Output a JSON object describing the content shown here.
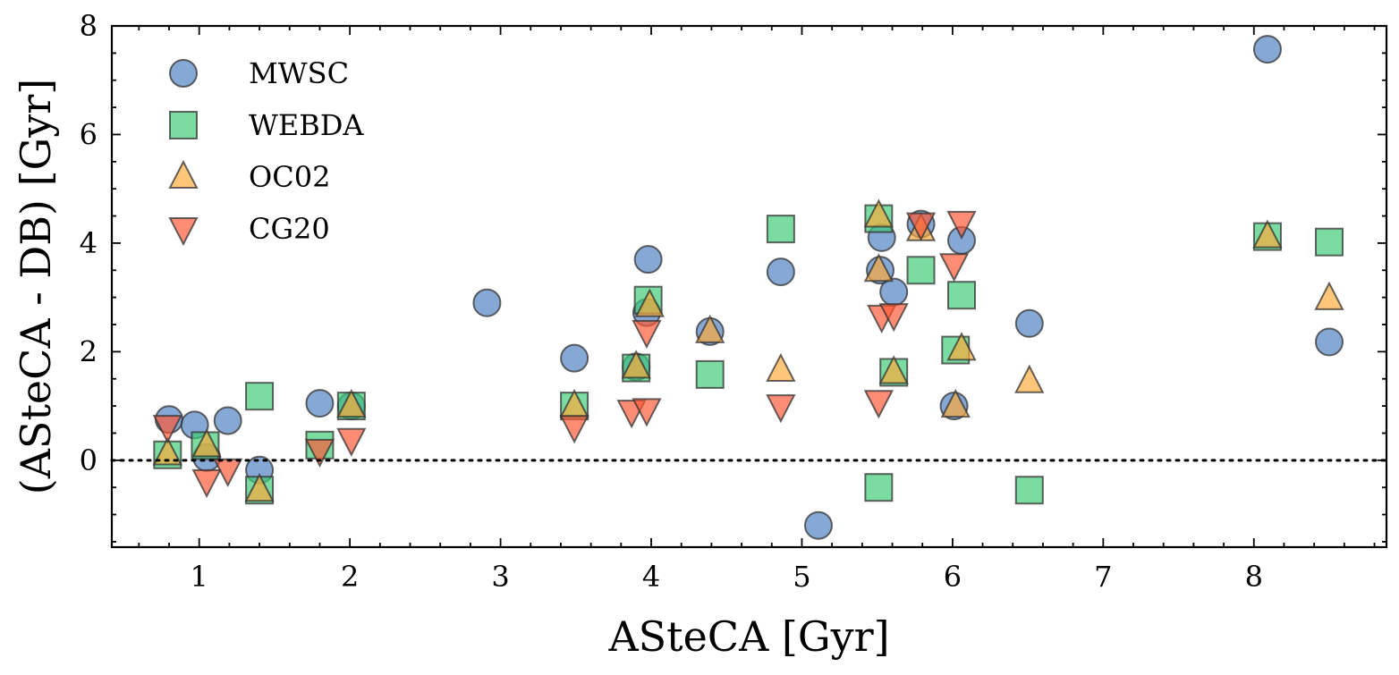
{
  "chart_data": {
    "type": "scatter",
    "xlabel": "ASteCA [Gyr]",
    "ylabel": "(ASteCA - DB) [Gyr]",
    "xlim": [
      0.42,
      8.88
    ],
    "ylim": [
      -1.6,
      8.0
    ],
    "x_ticks": [
      1,
      2,
      3,
      4,
      5,
      6,
      7,
      8
    ],
    "y_ticks": [
      0,
      2,
      4,
      6,
      8
    ],
    "x_tick_labels": [
      "1",
      "2",
      "3",
      "4",
      "5",
      "6",
      "7",
      "8"
    ],
    "y_tick_labels": [
      "0",
      "2",
      "4",
      "6",
      "8"
    ],
    "reference_line": {
      "y": 0,
      "style": "dotted",
      "color": "#000000"
    },
    "legend_position": "top-left",
    "grid": false,
    "series": [
      {
        "name": "MWSC",
        "marker": "circle",
        "color": "#4C7FBF",
        "points": [
          [
            0.8,
            0.75
          ],
          [
            0.97,
            0.65
          ],
          [
            1.05,
            0.05
          ],
          [
            1.19,
            0.73
          ],
          [
            1.4,
            -0.18
          ],
          [
            1.8,
            1.05
          ],
          [
            2.01,
            1.0
          ],
          [
            2.91,
            2.9
          ],
          [
            3.49,
            1.88
          ],
          [
            3.9,
            1.72
          ],
          [
            3.97,
            2.72
          ],
          [
            3.98,
            3.7
          ],
          [
            4.39,
            2.37
          ],
          [
            4.86,
            3.47
          ],
          [
            5.11,
            -1.2
          ],
          [
            5.52,
            3.5
          ],
          [
            5.53,
            4.1
          ],
          [
            5.61,
            3.1
          ],
          [
            5.79,
            4.35
          ],
          [
            6.01,
            1.0
          ],
          [
            6.06,
            4.05
          ],
          [
            6.51,
            2.52
          ],
          [
            8.09,
            7.57
          ],
          [
            8.5,
            2.18
          ]
        ]
      },
      {
        "name": "WEBDA",
        "marker": "square",
        "color": "#3DCC74",
        "points": [
          [
            0.79,
            0.1
          ],
          [
            1.04,
            0.27
          ],
          [
            1.4,
            1.18
          ],
          [
            1.4,
            -0.55
          ],
          [
            1.8,
            0.28
          ],
          [
            2.01,
            1.0
          ],
          [
            3.49,
            1.0
          ],
          [
            3.9,
            1.7
          ],
          [
            3.98,
            2.95
          ],
          [
            4.39,
            1.58
          ],
          [
            4.86,
            4.26
          ],
          [
            5.51,
            4.45
          ],
          [
            5.51,
            -0.5
          ],
          [
            5.61,
            1.62
          ],
          [
            5.79,
            3.5
          ],
          [
            6.02,
            2.03
          ],
          [
            6.06,
            3.04
          ],
          [
            6.51,
            -0.55
          ],
          [
            8.09,
            4.12
          ],
          [
            8.5,
            4.02
          ]
        ]
      },
      {
        "name": "OC02",
        "marker": "triangle-up",
        "color": "#FFA938",
        "points": [
          [
            0.79,
            0.12
          ],
          [
            1.05,
            0.27
          ],
          [
            1.4,
            -0.55
          ],
          [
            2.01,
            1.0
          ],
          [
            3.49,
            1.0
          ],
          [
            3.9,
            1.72
          ],
          [
            3.99,
            2.85
          ],
          [
            4.39,
            2.37
          ],
          [
            4.86,
            1.66
          ],
          [
            5.51,
            4.5
          ],
          [
            5.51,
            3.5
          ],
          [
            5.61,
            1.62
          ],
          [
            5.79,
            4.25
          ],
          [
            6.02,
            1.0
          ],
          [
            6.06,
            2.05
          ],
          [
            6.51,
            1.45
          ],
          [
            8.09,
            4.12
          ],
          [
            8.5,
            2.98
          ]
        ]
      },
      {
        "name": "CG20",
        "marker": "triangle-down",
        "color": "#FF5733",
        "points": [
          [
            0.79,
            0.62
          ],
          [
            1.05,
            -0.38
          ],
          [
            1.19,
            -0.18
          ],
          [
            1.8,
            0.18
          ],
          [
            2.01,
            0.38
          ],
          [
            3.49,
            0.62
          ],
          [
            3.87,
            0.9
          ],
          [
            3.97,
            0.93
          ],
          [
            3.97,
            2.37
          ],
          [
            4.86,
            1.0
          ],
          [
            5.51,
            1.08
          ],
          [
            5.53,
            2.65
          ],
          [
            5.61,
            2.68
          ],
          [
            5.79,
            4.35
          ],
          [
            6.01,
            3.6
          ],
          [
            6.06,
            4.38
          ]
        ]
      }
    ]
  }
}
